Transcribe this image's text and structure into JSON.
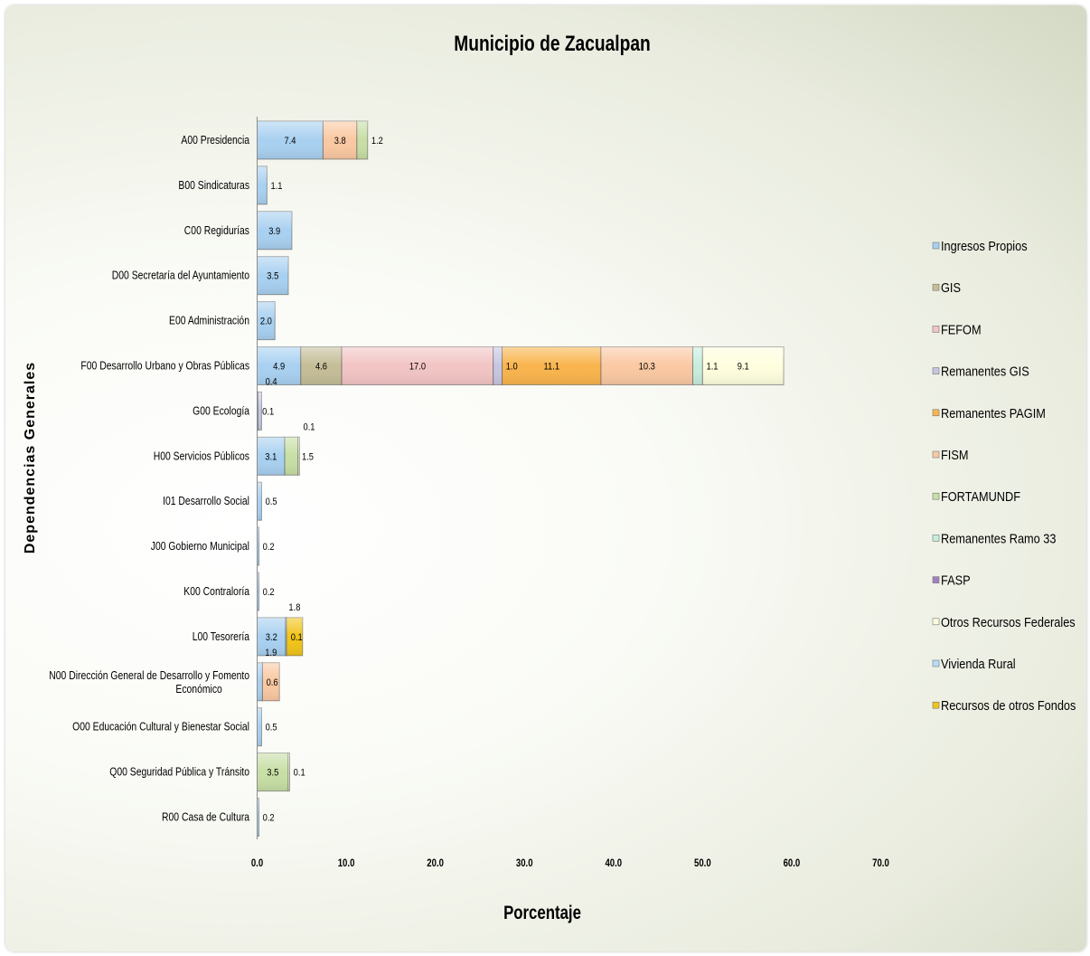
{
  "chart_data": {
    "type": "bar",
    "orientation": "horizontal",
    "stacked": true,
    "title": "Municipio de Zacualpan",
    "xlabel": "Porcentaje",
    "ylabel": "Dependencias Generales",
    "xlim": [
      0,
      70
    ],
    "xticks": [
      "0.0",
      "10.0",
      "20.0",
      "30.0",
      "40.0",
      "50.0",
      "60.0",
      "70.0"
    ],
    "legend_position": "right",
    "grid": false,
    "categories": [
      "A00 Presidencia",
      "B00 Sindicaturas",
      "C00 Regidurías",
      "D00 Secretaría del Ayuntamiento",
      "E00 Administración",
      "F00 Desarrollo Urbano y Obras Públicas",
      "G00 Ecología",
      "H00 Servicios Públicos",
      "I01 Desarrollo Social",
      "J00 Gobierno Municipal",
      "K00 Contraloría",
      "L00 Tesorería",
      "N00 Dirección General de Desarrollo y Fomento Económico",
      "O00 Educación Cultural y Bienestar Social",
      "Q00 Seguridad Pública y Tránsito",
      "R00 Casa de Cultura"
    ],
    "series": [
      {
        "name": "Ingresos Propios",
        "color": "#a8d0f0",
        "values": [
          7.4,
          1.1,
          3.9,
          3.5,
          2.0,
          4.9,
          0.1,
          3.1,
          0.5,
          0.2,
          0.2,
          3.2,
          0.6,
          0.5,
          0,
          0.2
        ]
      },
      {
        "name": "GIS",
        "color": "#c4bd97",
        "values": [
          0,
          0,
          0,
          0,
          0,
          4.6,
          0,
          0,
          0,
          0,
          0,
          0,
          0,
          0,
          0,
          0
        ]
      },
      {
        "name": "FEFOM",
        "color": "#f2c4c4",
        "values": [
          0,
          0,
          0,
          0,
          0,
          17.0,
          0,
          0,
          0,
          0,
          0,
          0,
          0,
          0,
          0,
          0
        ]
      },
      {
        "name": "Remanentes  GIS",
        "color": "#c6c6e2",
        "values": [
          0,
          0,
          0,
          0,
          0,
          1.0,
          0.4,
          0,
          0,
          0,
          0,
          0,
          0,
          0,
          0,
          0
        ]
      },
      {
        "name": "Remanentes PAGIM",
        "color": "#f9b44c",
        "values": [
          0,
          0,
          0,
          0,
          0,
          11.1,
          0,
          0,
          0,
          0,
          0,
          0,
          0,
          0,
          0,
          0
        ]
      },
      {
        "name": "FISM",
        "color": "#fac8a2",
        "values": [
          3.8,
          0,
          0,
          0,
          0,
          10.3,
          0,
          0,
          0,
          0,
          0,
          0,
          1.9,
          0,
          0,
          0
        ]
      },
      {
        "name": "FORTAMUNDF",
        "color": "#c7dea4",
        "values": [
          1.2,
          0,
          0,
          0,
          0,
          0,
          0,
          1.5,
          0,
          0,
          0,
          0,
          0,
          0,
          3.5,
          0
        ]
      },
      {
        "name": "Remanentes Ramo 33",
        "color": "#c6eddc",
        "values": [
          0,
          0,
          0,
          0,
          0,
          1.1,
          0,
          0,
          0,
          0,
          0,
          0,
          0,
          0,
          0,
          0
        ]
      },
      {
        "name": "FASP",
        "color": "#a080c0",
        "values": [
          0,
          0,
          0,
          0,
          0,
          0,
          0,
          0,
          0,
          0,
          0,
          0,
          0,
          0,
          0,
          0
        ]
      },
      {
        "name": "Otros Recursos Federales",
        "color": "#fefede",
        "values": [
          0,
          0,
          0,
          0,
          0,
          9.1,
          0,
          0.1,
          0,
          0,
          0,
          0,
          0,
          0,
          0.1,
          0
        ]
      },
      {
        "name": "Vivienda Rural",
        "color": "#b6dcf4",
        "values": [
          0,
          0,
          0,
          0,
          0,
          0,
          0,
          0,
          0,
          0,
          0,
          0.1,
          0,
          0,
          0,
          0
        ]
      },
      {
        "name": "Recursos de otros Fondos",
        "color": "#f0c419",
        "values": [
          0,
          0,
          0,
          0,
          0,
          0,
          0,
          0,
          0,
          0,
          0,
          1.8,
          0,
          0,
          0,
          0
        ]
      }
    ]
  }
}
